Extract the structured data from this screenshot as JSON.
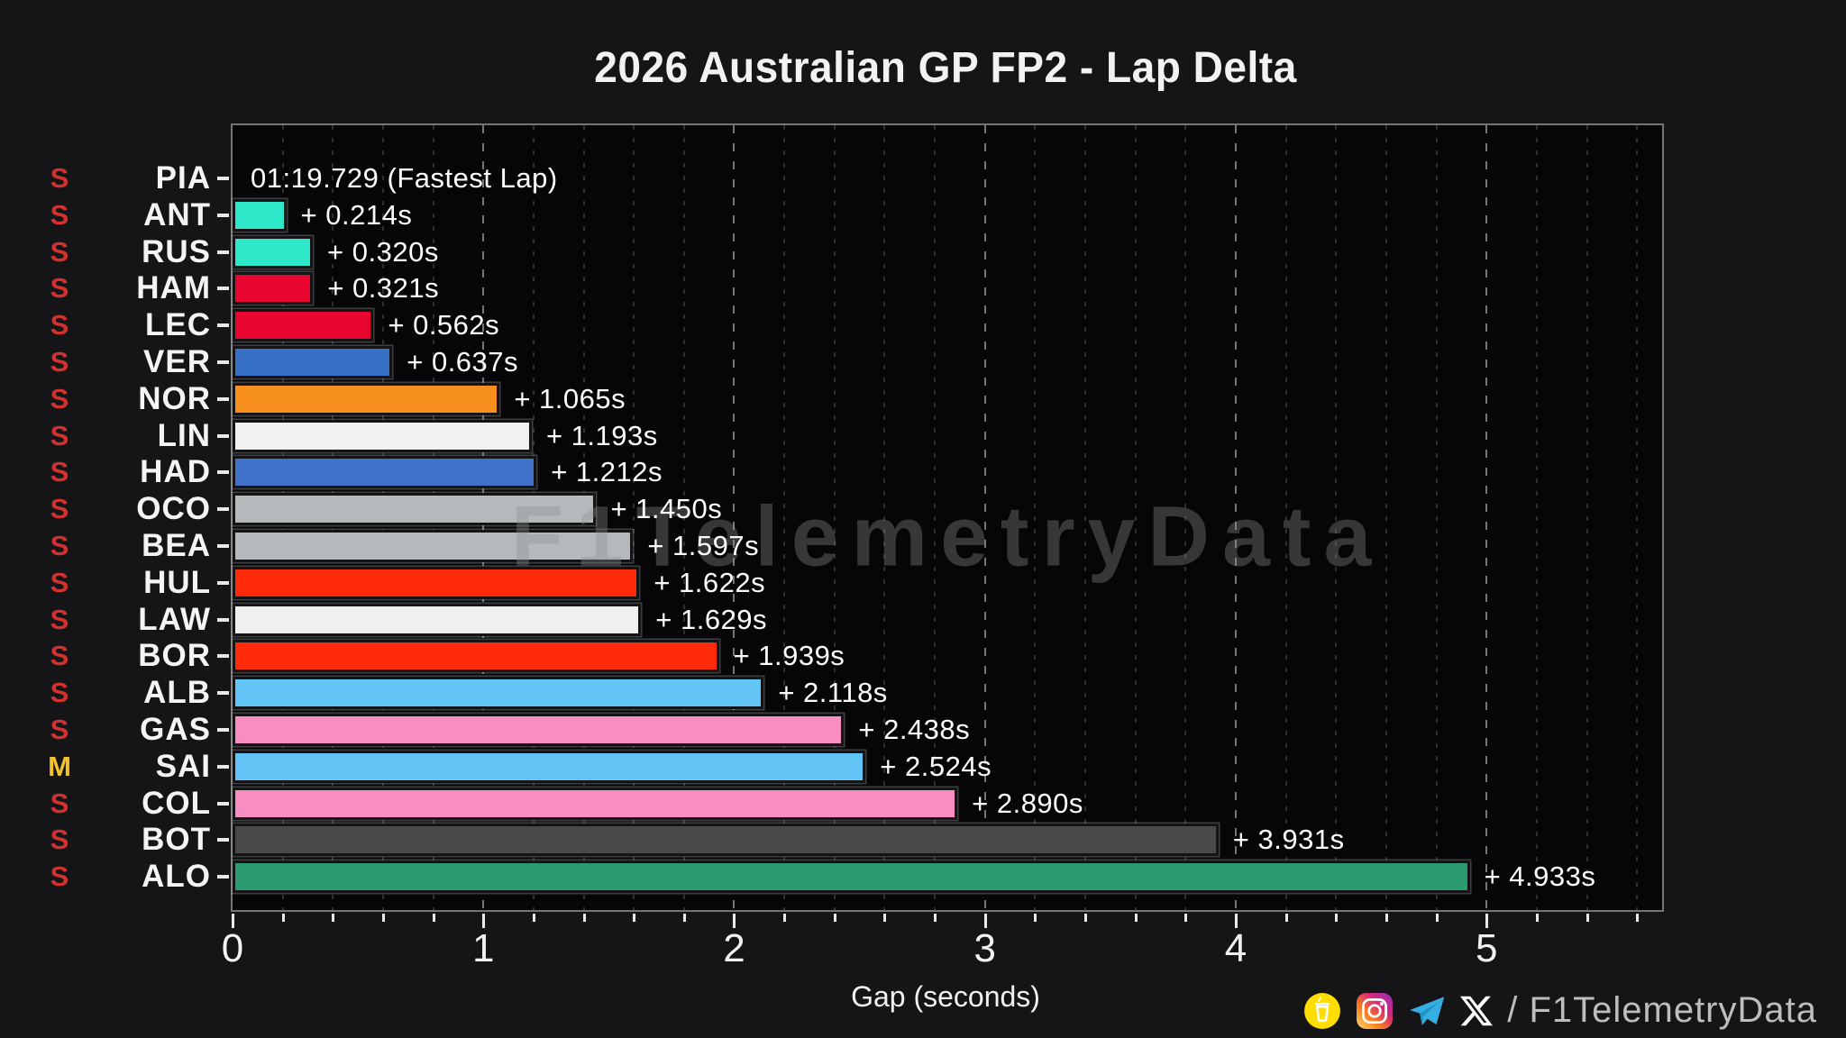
{
  "title": "2026 Australian GP FP2 - Lap Delta",
  "axis": {
    "xlabel": "Gap (seconds)"
  },
  "watermark": "F1TelemetryData",
  "footer": {
    "handle": "/ F1TelemetryData",
    "icons": [
      "buymeacoffee-icon",
      "instagram-icon",
      "telegram-icon",
      "x-icon"
    ]
  },
  "tyre_colors": {
    "S": "#D2322E",
    "M": "#F3C32B"
  },
  "chart_data": {
    "type": "bar",
    "orientation": "horizontal",
    "title": "2026 Australian GP FP2 - Lap Delta",
    "xlabel": "Gap (seconds)",
    "xlim": [
      0,
      5.7
    ],
    "xticks": [
      0,
      1,
      2,
      3,
      4,
      5
    ],
    "minor_tick_step": 0.2,
    "grid": "dashed-vertical",
    "fastest_lap": "01:19.729",
    "drivers": [
      {
        "code": "PIA",
        "tyre": "S",
        "gap": 0.0,
        "label": "01:19.729 (Fastest Lap)",
        "color": "#F7901E"
      },
      {
        "code": "ANT",
        "tyre": "S",
        "gap": 0.214,
        "label": "+ 0.214s",
        "color": "#2EE6C8"
      },
      {
        "code": "RUS",
        "tyre": "S",
        "gap": 0.32,
        "label": "+ 0.320s",
        "color": "#2EE6C8"
      },
      {
        "code": "HAM",
        "tyre": "S",
        "gap": 0.321,
        "label": "+ 0.321s",
        "color": "#E8052F"
      },
      {
        "code": "LEC",
        "tyre": "S",
        "gap": 0.562,
        "label": "+ 0.562s",
        "color": "#E8052F"
      },
      {
        "code": "VER",
        "tyre": "S",
        "gap": 0.637,
        "label": "+ 0.637s",
        "color": "#3671C6"
      },
      {
        "code": "NOR",
        "tyre": "S",
        "gap": 1.065,
        "label": "+ 1.065s",
        "color": "#F7901E"
      },
      {
        "code": "LIN",
        "tyre": "S",
        "gap": 1.193,
        "label": "+ 1.193s",
        "color": "#F1F1F1"
      },
      {
        "code": "HAD",
        "tyre": "S",
        "gap": 1.212,
        "label": "+ 1.212s",
        "color": "#4072C9"
      },
      {
        "code": "OCO",
        "tyre": "S",
        "gap": 1.45,
        "label": "+ 1.450s",
        "color": "#B5B9BC"
      },
      {
        "code": "BEA",
        "tyre": "S",
        "gap": 1.597,
        "label": "+ 1.597s",
        "color": "#B5B9BC"
      },
      {
        "code": "HUL",
        "tyre": "S",
        "gap": 1.622,
        "label": "+ 1.622s",
        "color": "#FF2B08"
      },
      {
        "code": "LAW",
        "tyre": "S",
        "gap": 1.629,
        "label": "+ 1.629s",
        "color": "#EFEFEF"
      },
      {
        "code": "BOR",
        "tyre": "S",
        "gap": 1.939,
        "label": "+ 1.939s",
        "color": "#FF2B08"
      },
      {
        "code": "ALB",
        "tyre": "S",
        "gap": 2.118,
        "label": "+ 2.118s",
        "color": "#63C4F6"
      },
      {
        "code": "GAS",
        "tyre": "S",
        "gap": 2.438,
        "label": "+ 2.438s",
        "color": "#F78DC0"
      },
      {
        "code": "SAI",
        "tyre": "M",
        "gap": 2.524,
        "label": "+ 2.524s",
        "color": "#63C4F6"
      },
      {
        "code": "COL",
        "tyre": "S",
        "gap": 2.89,
        "label": "+ 2.890s",
        "color": "#F78DC0"
      },
      {
        "code": "BOT",
        "tyre": "S",
        "gap": 3.931,
        "label": "+ 3.931s",
        "color": "#4A4A4C"
      },
      {
        "code": "ALO",
        "tyre": "S",
        "gap": 4.933,
        "label": "+ 4.933s",
        "color": "#2A9B6F"
      }
    ]
  }
}
